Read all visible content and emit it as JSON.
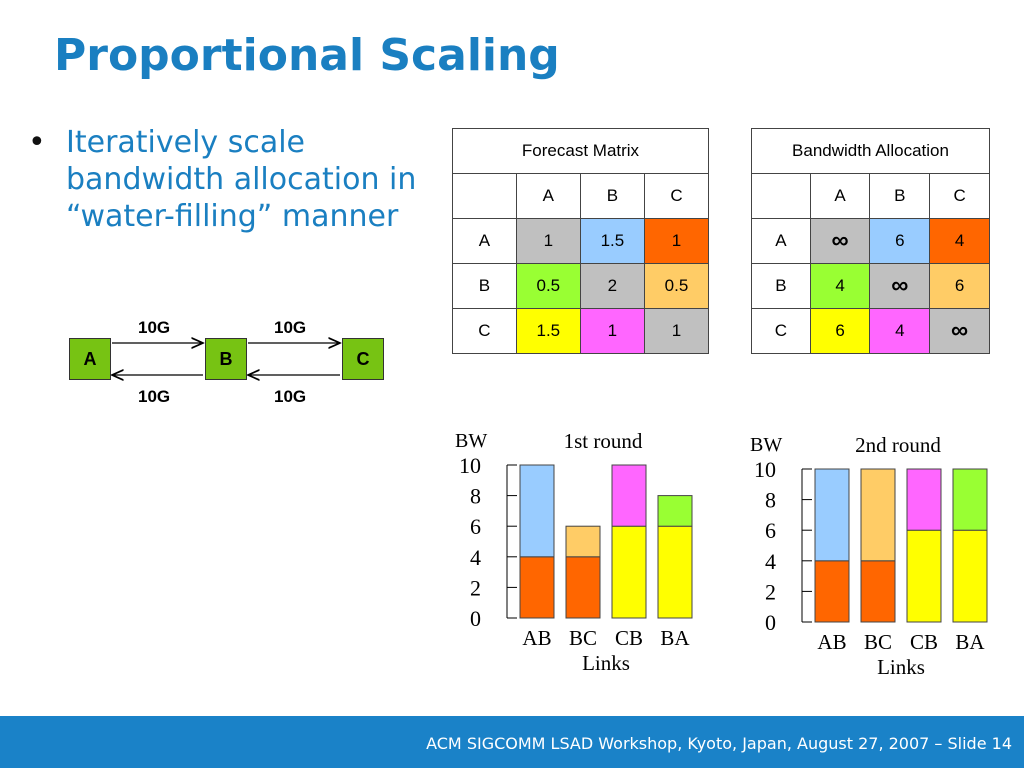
{
  "slide": {
    "title": "Proportional Scaling",
    "bullet_dot": "•",
    "bullet": "Iteratively scale bandwidth allocation in “water-filling” manner",
    "footer": "ACM SIGCOMM LSAD Workshop, Kyoto, Japan, August 27, 2007 – Slide 14"
  },
  "network": {
    "nodes": [
      "A",
      "B",
      "C"
    ],
    "links": {
      "ab_top": "10G",
      "bc_top": "10G",
      "ab_bottom": "10G",
      "bc_bottom": "10G"
    }
  },
  "forecast": {
    "title": "Forecast Matrix",
    "cols": [
      "A",
      "B",
      "C"
    ],
    "rows": [
      {
        "label": "A",
        "cells": [
          "1",
          "1.5",
          "1"
        ]
      },
      {
        "label": "B",
        "cells": [
          "0.5",
          "2",
          "0.5"
        ]
      },
      {
        "label": "C",
        "cells": [
          "1.5",
          "1",
          "1"
        ]
      }
    ]
  },
  "allocation": {
    "title": "Bandwidth Allocation",
    "cols": [
      "A",
      "B",
      "C"
    ],
    "rows": [
      {
        "label": "A",
        "cells": [
          "∞",
          "6",
          "4"
        ]
      },
      {
        "label": "B",
        "cells": [
          "4",
          "∞",
          "6"
        ]
      },
      {
        "label": "C",
        "cells": [
          "6",
          "4",
          "∞"
        ]
      }
    ]
  },
  "colors": {
    "gray": "#c0c0c0",
    "lightblue": "#99ccff",
    "orange": "#ff6600",
    "green": "#99ff33",
    "lightorange": "#ffcc66",
    "yellow": "#ffff00",
    "pink": "#ff66ff",
    "accent": "#1a7fc1"
  },
  "chart_data": [
    {
      "type": "bar",
      "stacked": true,
      "title": "1st round",
      "ylabel": "BW",
      "xlabel": "Links",
      "categories": [
        "AB",
        "BC",
        "CB",
        "BA"
      ],
      "yticks": [
        "0",
        "2",
        "4",
        "6",
        "8",
        "10"
      ],
      "ylim": [
        0,
        10
      ],
      "series": [
        {
          "values": [
            4,
            4,
            6,
            6
          ],
          "colors": [
            "#ff6600",
            "#ff6600",
            "#ffff00",
            "#ffff00"
          ]
        },
        {
          "values": [
            6,
            2,
            4,
            2
          ],
          "colors": [
            "#99ccff",
            "#ffcc66",
            "#ff66ff",
            "#99ff33"
          ]
        }
      ]
    },
    {
      "type": "bar",
      "stacked": true,
      "title": "2nd round",
      "ylabel": "BW",
      "xlabel": "Links",
      "categories": [
        "AB",
        "BC",
        "CB",
        "BA"
      ],
      "yticks": [
        "0",
        "2",
        "4",
        "6",
        "8",
        "10"
      ],
      "ylim": [
        0,
        10
      ],
      "series": [
        {
          "values": [
            4,
            4,
            6,
            6
          ],
          "colors": [
            "#ff6600",
            "#ff6600",
            "#ffff00",
            "#ffff00"
          ]
        },
        {
          "values": [
            6,
            6,
            4,
            4
          ],
          "colors": [
            "#99ccff",
            "#ffcc66",
            "#ff66ff",
            "#99ff33"
          ]
        }
      ]
    }
  ]
}
